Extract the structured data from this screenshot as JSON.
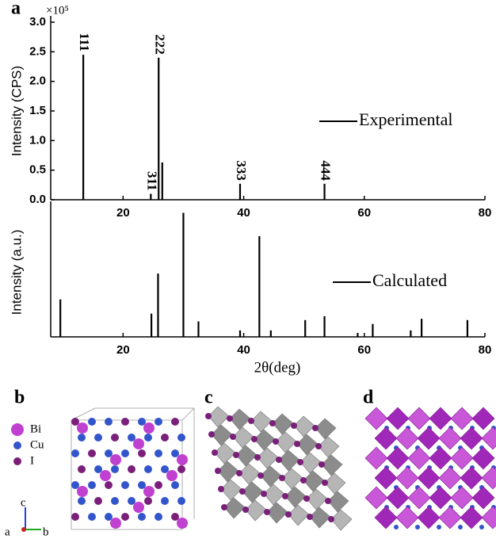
{
  "chart_data": [
    {
      "type": "stem",
      "panel": "a",
      "y_label": "Intensity (CPS)",
      "y_multiplier": "×10⁵",
      "xlim": [
        8,
        80
      ],
      "xticks": [
        20,
        40,
        60,
        80
      ],
      "ylim": [
        0,
        3.0
      ],
      "yticks": [
        {
          "value": 0,
          "label": "0.0"
        },
        {
          "value": 0.5,
          "label": "0.5"
        },
        {
          "value": 1,
          "label": "1.0"
        },
        {
          "value": 1.5,
          "label": "1.5"
        },
        {
          "value": 2,
          "label": "2.0"
        },
        {
          "value": 2.5,
          "label": "2.5"
        },
        {
          "value": 3,
          "label": "3.0"
        }
      ],
      "series": [
        {
          "name": "Experimental",
          "color": "#000000",
          "x": [
            13.4,
            24.6,
            25.9,
            26.5,
            39.4,
            53.4
          ],
          "values": [
            2.45,
            0.1,
            2.4,
            0.63,
            0.27,
            0.27
          ]
        }
      ],
      "annotations": [
        {
          "text": "111",
          "x": 13.4,
          "y": 2.45
        },
        {
          "text": "311",
          "x": 24.6,
          "y": 0.1
        },
        {
          "text": "222",
          "x": 25.9,
          "y": 2.4
        },
        {
          "text": "333",
          "x": 39.4,
          "y": 0.27
        },
        {
          "text": "444",
          "x": 53.4,
          "y": 0.27
        }
      ]
    },
    {
      "type": "stem",
      "y_label": "Intensity (a.u.)",
      "x_label": "2θ(deg)",
      "xlim": [
        8,
        80
      ],
      "xticks": [
        20,
        40,
        60,
        80
      ],
      "ylim": [
        0,
        1
      ],
      "series": [
        {
          "name": "Calculated",
          "color": "#000000",
          "x": [
            9.6,
            24.7,
            25.8,
            30.0,
            32.5,
            39.4,
            42.6,
            44.5,
            50.2,
            53.4,
            58.9,
            61.4,
            67.7,
            69.5,
            77.1
          ],
          "values": [
            0.29,
            0.18,
            0.49,
            0.96,
            0.12,
            0.05,
            0.78,
            0.05,
            0.13,
            0.16,
            0.03,
            0.1,
            0.05,
            0.14,
            0.13
          ]
        }
      ]
    }
  ],
  "panels": {
    "b": "b",
    "c": "c",
    "d": "d"
  },
  "structure_legend": [
    "Bi",
    "Cu",
    "I"
  ],
  "axes": [
    "c",
    "a",
    "b"
  ]
}
